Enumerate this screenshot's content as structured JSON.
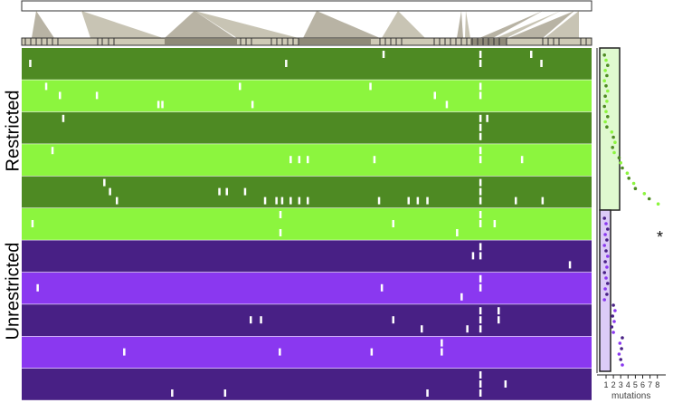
{
  "labels": {
    "restricted": "Restricted",
    "unrestricted": "Unrestricted",
    "xlabel": "mutations",
    "significance": "*"
  },
  "colors": {
    "restricted_dark": "#4e8a23",
    "restricted_light": "#8cf53e",
    "unrestricted_dark": "#482085",
    "unrestricted_light": "#8a38f0",
    "mark": "#ffffff",
    "box_restricted": "#dff9cf",
    "box_unrestricted": "#dccbf7"
  },
  "chart_data": [
    {
      "type": "heatmap",
      "title": "",
      "description_axis": "genome position",
      "xlim": [
        0,
        1
      ],
      "groups": [
        {
          "name": "Restricted",
          "rows": [
            {
              "shade": "dark",
              "marks": [
                [
                  0.013,
                  1
                ],
                [
                  0.462,
                  1
                ],
                [
                  0.633,
                  0
                ],
                [
                  0.803,
                  0
                ],
                [
                  0.803,
                  1
                ],
                [
                  0.892,
                  0
                ],
                [
                  0.91,
                  1
                ]
              ]
            },
            {
              "shade": "light",
              "marks": [
                [
                  0.041,
                  0
                ],
                [
                  0.065,
                  1
                ],
                [
                  0.13,
                  1
                ],
                [
                  0.238,
                  2
                ],
                [
                  0.245,
                  2
                ],
                [
                  0.381,
                  0
                ],
                [
                  0.403,
                  2
                ],
                [
                  0.61,
                  0
                ],
                [
                  0.723,
                  1
                ],
                [
                  0.744,
                  2
                ],
                [
                  0.803,
                  0
                ],
                [
                  0.803,
                  1
                ]
              ]
            },
            {
              "shade": "dark",
              "marks": [
                [
                  0.071,
                  0
                ],
                [
                  0.803,
                  0
                ],
                [
                  0.803,
                  1
                ],
                [
                  0.803,
                  2
                ],
                [
                  0.815,
                  0
                ]
              ]
            },
            {
              "shade": "light",
              "marks": [
                [
                  0.052,
                  0
                ],
                [
                  0.47,
                  1
                ],
                [
                  0.485,
                  1
                ],
                [
                  0.5,
                  1
                ],
                [
                  0.617,
                  1
                ],
                [
                  0.803,
                  0
                ],
                [
                  0.803,
                  1
                ],
                [
                  0.876,
                  1
                ]
              ]
            },
            {
              "shade": "dark",
              "marks": [
                [
                  0.143,
                  0
                ],
                [
                  0.153,
                  1
                ],
                [
                  0.165,
                  2
                ],
                [
                  0.345,
                  1
                ],
                [
                  0.358,
                  1
                ],
                [
                  0.39,
                  1
                ],
                [
                  0.425,
                  2
                ],
                [
                  0.445,
                  2
                ],
                [
                  0.455,
                  2
                ],
                [
                  0.47,
                  2
                ],
                [
                  0.485,
                  2
                ],
                [
                  0.5,
                  2
                ],
                [
                  0.625,
                  2
                ],
                [
                  0.677,
                  2
                ],
                [
                  0.693,
                  2
                ],
                [
                  0.71,
                  2
                ],
                [
                  0.803,
                  0
                ],
                [
                  0.803,
                  1
                ],
                [
                  0.803,
                  2
                ],
                [
                  0.865,
                  2
                ],
                [
                  0.912,
                  2
                ]
              ]
            },
            {
              "shade": "light",
              "marks": [
                [
                  0.017,
                  1
                ],
                [
                  0.452,
                  0
                ],
                [
                  0.452,
                  2
                ],
                [
                  0.65,
                  1
                ],
                [
                  0.762,
                  2
                ],
                [
                  0.803,
                  0
                ],
                [
                  0.803,
                  1
                ],
                [
                  0.828,
                  1
                ]
              ]
            }
          ]
        },
        {
          "name": "Unrestricted",
          "rows": [
            {
              "shade": "dark",
              "marks": [
                [
                  0.79,
                  1
                ],
                [
                  0.803,
                  0
                ],
                [
                  0.803,
                  1
                ],
                [
                  0.96,
                  2
                ]
              ]
            },
            {
              "shade": "light",
              "marks": [
                [
                  0.026,
                  1
                ],
                [
                  0.63,
                  1
                ],
                [
                  0.77,
                  2
                ],
                [
                  0.803,
                  0
                ],
                [
                  0.803,
                  1
                ]
              ]
            },
            {
              "shade": "dark",
              "marks": [
                [
                  0.4,
                  1
                ],
                [
                  0.418,
                  1
                ],
                [
                  0.65,
                  1
                ],
                [
                  0.7,
                  2
                ],
                [
                  0.78,
                  2
                ],
                [
                  0.803,
                  0
                ],
                [
                  0.803,
                  1
                ],
                [
                  0.803,
                  2
                ],
                [
                  0.835,
                  0
                ],
                [
                  0.835,
                  1
                ]
              ]
            },
            {
              "shade": "light",
              "marks": [
                [
                  0.178,
                  1
                ],
                [
                  0.451,
                  1
                ],
                [
                  0.612,
                  1
                ],
                [
                  0.735,
                  0
                ],
                [
                  0.735,
                  1
                ]
              ]
            },
            {
              "shade": "dark",
              "marks": [
                [
                  0.262,
                  2
                ],
                [
                  0.355,
                  2
                ],
                [
                  0.71,
                  2
                ],
                [
                  0.803,
                  0
                ],
                [
                  0.803,
                  1
                ],
                [
                  0.803,
                  2
                ],
                [
                  0.847,
                  1
                ]
              ]
            }
          ]
        }
      ]
    },
    {
      "type": "scatter",
      "title": "",
      "xlabel": "mutations",
      "ylabel": "",
      "x_ticks": [
        "1",
        "2",
        "3",
        "4",
        "5",
        "6",
        "7",
        "8"
      ],
      "xlim": [
        0.5,
        8.5
      ],
      "series": [
        {
          "name": "Restricted",
          "x": [
            1,
            1,
            1,
            1,
            1,
            1,
            1,
            1,
            1,
            1,
            1,
            1,
            1,
            1,
            1,
            2,
            2,
            2,
            2,
            2,
            3,
            3,
            3,
            4,
            4,
            5,
            5,
            6,
            7,
            8
          ]
        },
        {
          "name": "Unrestricted",
          "x": [
            1,
            1,
            1,
            1,
            1,
            1,
            1,
            1,
            1,
            1,
            1,
            1,
            1,
            1,
            1,
            1,
            2,
            2,
            2,
            2,
            2,
            2,
            3,
            3,
            3,
            3,
            3,
            3
          ]
        }
      ]
    }
  ]
}
